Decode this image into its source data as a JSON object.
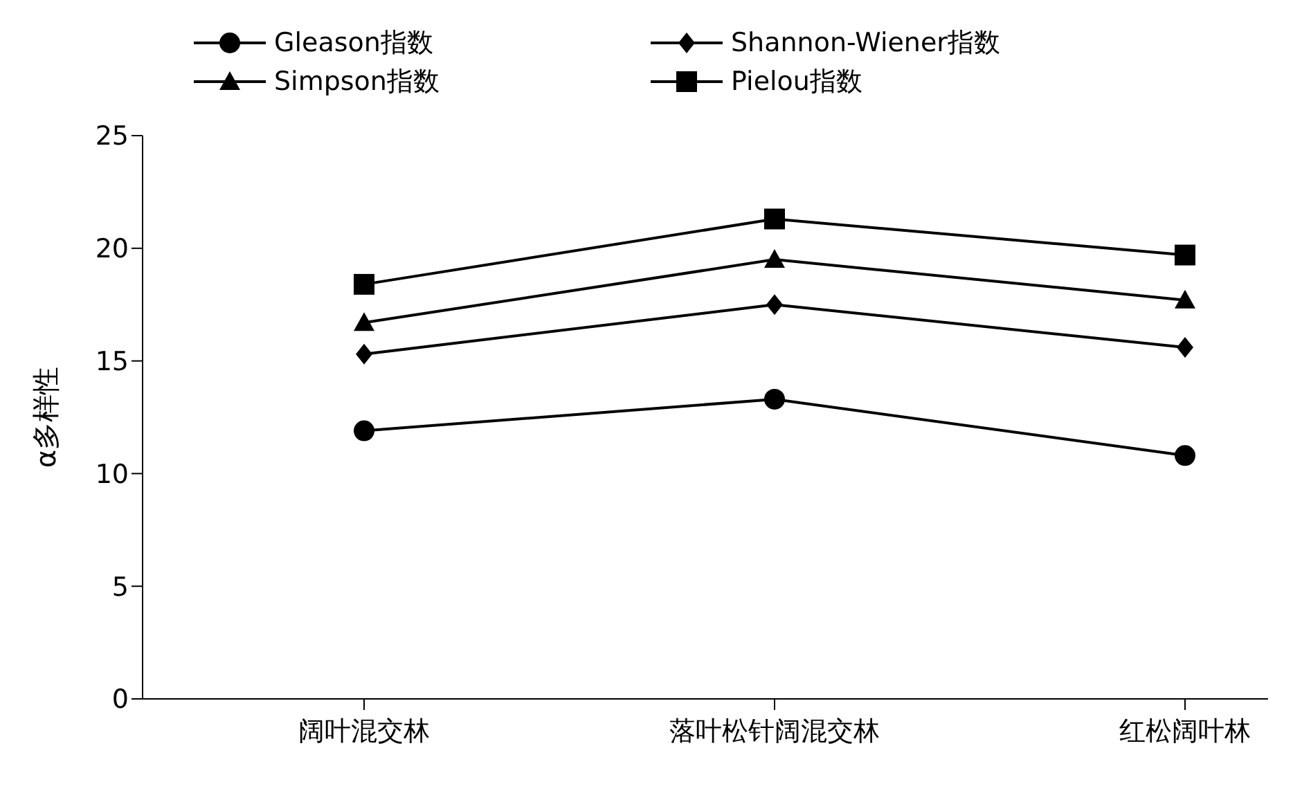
{
  "chart_data": {
    "type": "line",
    "ylabel": "α多样性",
    "categories": [
      "阔叶混交林",
      "落叶松针阔混交林",
      "红松阔叶林"
    ],
    "series": [
      {
        "name": "Gleason指数",
        "color": "#000000",
        "marker": "circle",
        "values": [
          11.9,
          13.3,
          10.8
        ]
      },
      {
        "name": "Shannon-Wiener指数",
        "color": "#000000",
        "marker": "diamond",
        "values": [
          15.3,
          17.5,
          15.6
        ]
      },
      {
        "name": "Simpson指数",
        "color": "#000000",
        "marker": "triangle",
        "values": [
          16.7,
          19.5,
          17.7
        ]
      },
      {
        "name": "Pielou指数",
        "color": "#000000",
        "marker": "square",
        "values": [
          18.4,
          21.3,
          19.7
        ]
      }
    ],
    "ylim": [
      0,
      25
    ],
    "yticks": [
      0,
      5,
      10,
      15,
      20,
      25
    ],
    "grid": false,
    "legend": "top left",
    "line_style": "solid"
  }
}
